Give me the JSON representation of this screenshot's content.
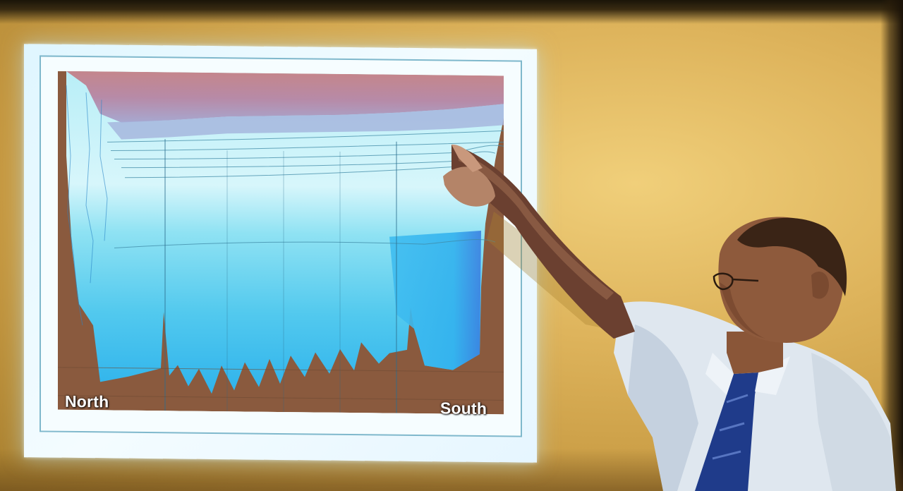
{
  "slide": {
    "left_label": "North",
    "right_label": "South"
  },
  "colors": {
    "wall": "#deb45c",
    "screen_glow": "#e6f6ff",
    "seabed": "#8a5a3e",
    "surface_layer": "#c98a8f",
    "water_light": "#8ee6f4",
    "water_deep": "#2aa7e8",
    "shirt": "#dfe7ef",
    "tie": "#1f3b8a",
    "hair": "#3a2416"
  },
  "icons": [
    "pointing-hand-icon"
  ]
}
